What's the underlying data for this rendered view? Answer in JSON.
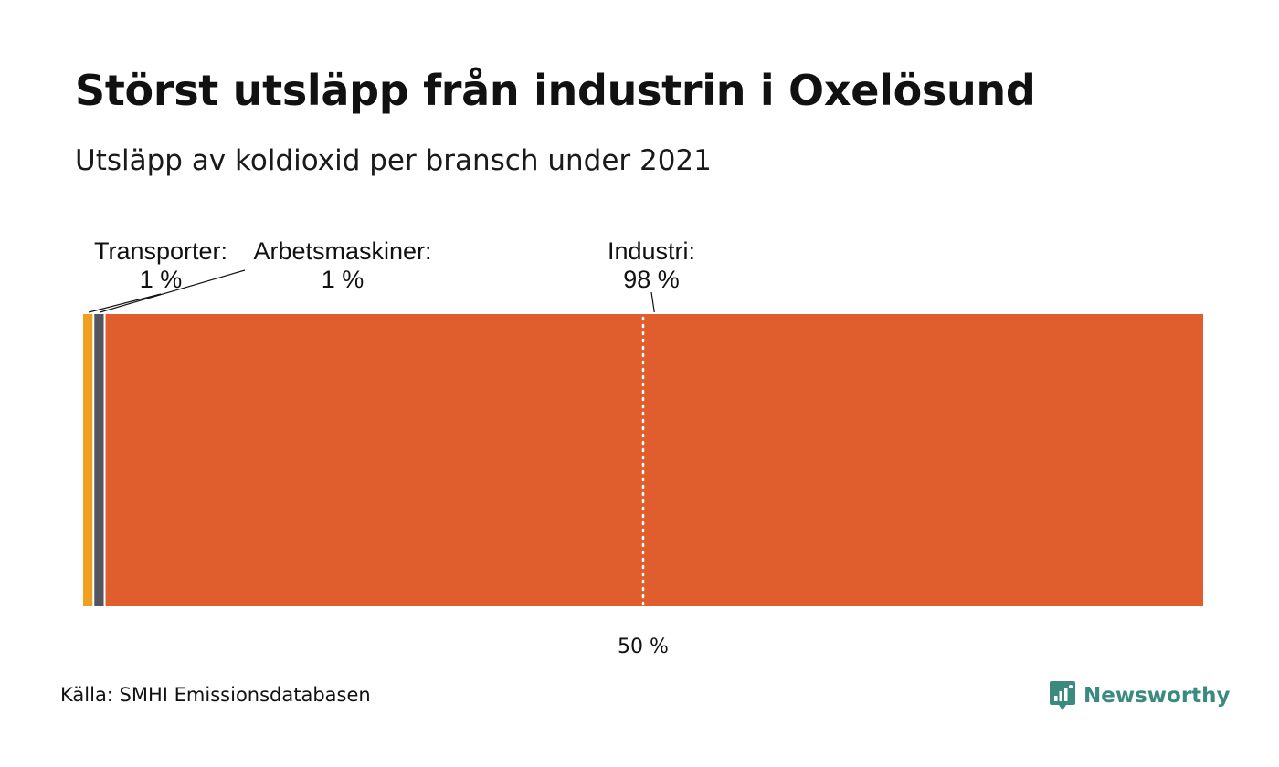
{
  "header": {
    "title": "Störst utsläpp från industrin i Oxelösund",
    "subtitle": "Utsläpp av koldioxid per bransch under 2021"
  },
  "footer": {
    "source": "Källa: SMHI Emissionsdatabasen",
    "brand": "Newsworthy",
    "brand_icon": "newsworthy-logo-icon",
    "brand_color": "#3b8a80"
  },
  "chart_data": {
    "type": "bar",
    "orientation": "horizontal-stacked-100",
    "series": [
      {
        "name": "Transporter",
        "value": 1,
        "label_line1": "Transporter:",
        "label_line2": "1 %",
        "color": "#f0a01e"
      },
      {
        "name": "Arbetsmaskiner",
        "value": 1,
        "label_line1": "Arbetsmaskiner:",
        "label_line2": "1 %",
        "color": "#55555f"
      },
      {
        "name": "Industri",
        "value": 98,
        "label_line1": "Industri:",
        "label_line2": "98 %",
        "color": "#e05d2e"
      }
    ],
    "xlim": [
      0,
      100
    ],
    "reference_line": {
      "value": 50,
      "label": "50 %",
      "style": "dotted",
      "color": "#ffffff"
    },
    "grid": false,
    "legend": "none"
  }
}
